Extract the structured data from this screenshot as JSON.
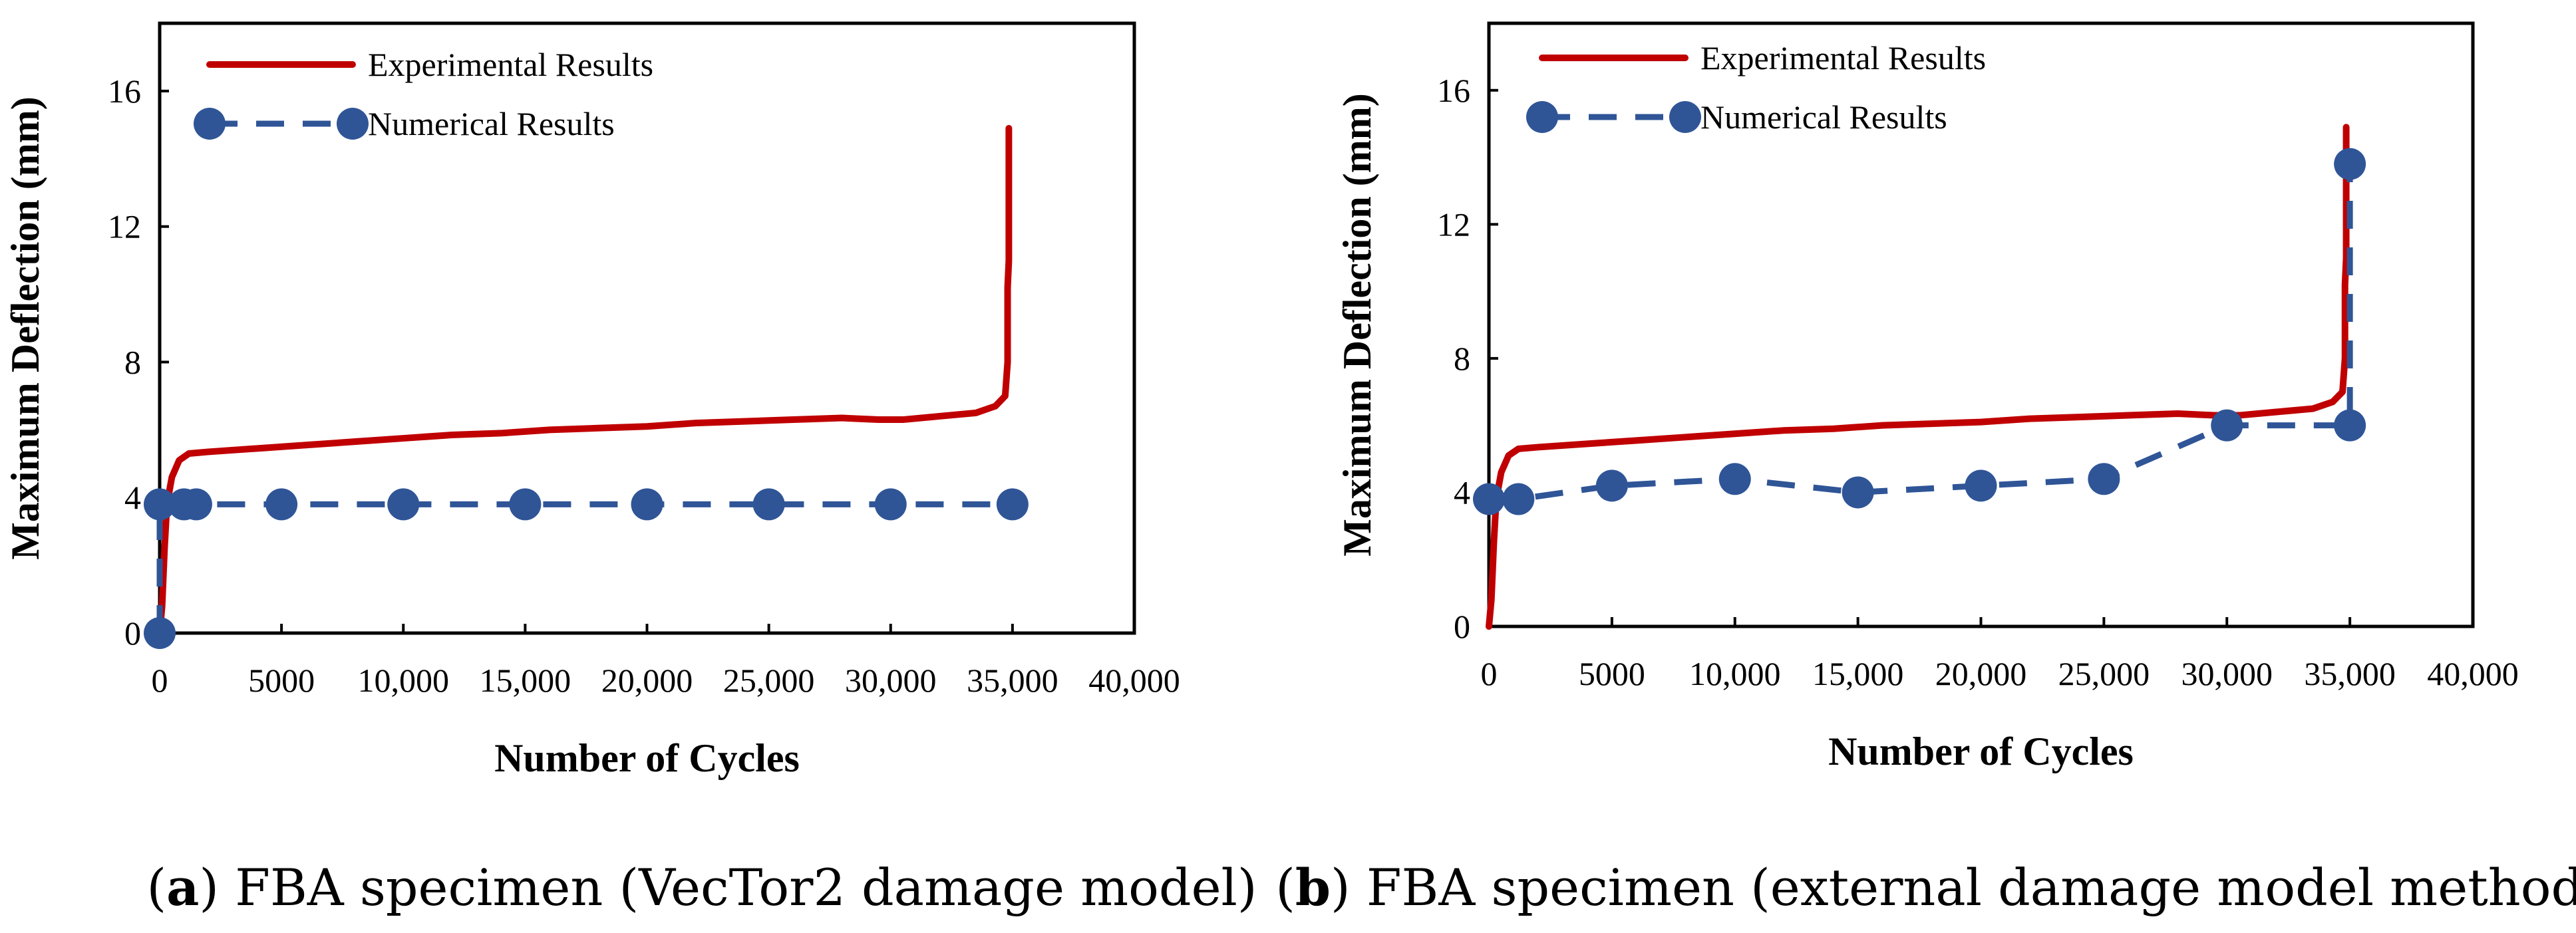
{
  "colors": {
    "experimental": "#C00000",
    "numerical": "#2F5597",
    "axis": "#000000"
  },
  "captions": [
    {
      "label": "a",
      "text": " FBA specimen (VecTor2 damage model)"
    },
    {
      "label": "b",
      "text": " FBA specimen (external damage model method)"
    }
  ],
  "chart_data": [
    {
      "type": "line",
      "xlabel": "Number of Cycles",
      "ylabel": "Maximum Deflection (mm)",
      "xlim": [
        0,
        40000
      ],
      "ylim": [
        0,
        18
      ],
      "x_ticks": [
        0,
        5000,
        10000,
        15000,
        20000,
        25000,
        30000,
        35000,
        40000
      ],
      "x_tick_labels": [
        "0",
        "5000",
        "10,000",
        "15,000",
        "20,000",
        "25,000",
        "30,000",
        "35,000",
        "40,000"
      ],
      "y_ticks": [
        0,
        4,
        8,
        12,
        16
      ],
      "y_tick_labels": [
        "0",
        "4",
        "8",
        "12",
        "16"
      ],
      "legend": {
        "position": "top-left",
        "entries": [
          "Experimental Results",
          "Numerical Results"
        ]
      },
      "series": [
        {
          "name": "Experimental Results",
          "style": "solid",
          "x": [
            0,
            100,
            200,
            300,
            500,
            800,
            1200,
            2000,
            4000,
            6000,
            8000,
            10000,
            12000,
            14000,
            16000,
            18000,
            20000,
            22000,
            24000,
            26000,
            28000,
            29500,
            30500,
            32000,
            33500,
            34300,
            34700,
            34800,
            34800,
            34850,
            34850
          ],
          "y": [
            0,
            0.8,
            2.5,
            3.8,
            4.6,
            5.1,
            5.3,
            5.35,
            5.45,
            5.55,
            5.65,
            5.75,
            5.85,
            5.9,
            6.0,
            6.05,
            6.1,
            6.2,
            6.25,
            6.3,
            6.35,
            6.3,
            6.3,
            6.4,
            6.5,
            6.7,
            7.0,
            8.0,
            10.2,
            11.0,
            14.9
          ]
        },
        {
          "name": "Numerical Results",
          "style": "dashed",
          "marker": "circle",
          "x": [
            0,
            0,
            1000,
            1500,
            5000,
            10000,
            15000,
            20000,
            25000,
            30000,
            35000
          ],
          "y": [
            0,
            3.8,
            3.8,
            3.8,
            3.8,
            3.8,
            3.8,
            3.8,
            3.8,
            3.8,
            3.8
          ]
        }
      ]
    },
    {
      "type": "line",
      "xlabel": "Number of Cycles",
      "ylabel": "Maximum Deflection (mm)",
      "xlim": [
        0,
        40000
      ],
      "ylim": [
        0,
        18
      ],
      "x_ticks": [
        0,
        5000,
        10000,
        15000,
        20000,
        25000,
        30000,
        35000,
        40000
      ],
      "x_tick_labels": [
        "0",
        "5000",
        "10,000",
        "15,000",
        "20,000",
        "25,000",
        "30,000",
        "35,000",
        "40,000"
      ],
      "y_ticks": [
        0,
        4,
        8,
        12,
        16
      ],
      "y_tick_labels": [
        "0",
        "4",
        "8",
        "12",
        "16"
      ],
      "legend": {
        "position": "top-left",
        "entries": [
          "Experimental Results",
          "Numerical Results"
        ]
      },
      "series": [
        {
          "name": "Experimental Results",
          "style": "solid",
          "x": [
            0,
            100,
            200,
            300,
            500,
            800,
            1200,
            2000,
            4000,
            6000,
            8000,
            10000,
            12000,
            14000,
            16000,
            18000,
            20000,
            22000,
            24000,
            26000,
            28000,
            29500,
            30500,
            32000,
            33500,
            34300,
            34700,
            34800,
            34800,
            34850,
            34850
          ],
          "y": [
            0,
            0.8,
            2.5,
            3.8,
            4.6,
            5.1,
            5.3,
            5.35,
            5.45,
            5.55,
            5.65,
            5.75,
            5.85,
            5.9,
            6.0,
            6.05,
            6.1,
            6.2,
            6.25,
            6.3,
            6.35,
            6.3,
            6.3,
            6.4,
            6.5,
            6.7,
            7.0,
            8.0,
            10.2,
            11.0,
            14.9
          ]
        },
        {
          "name": "Numerical Results",
          "style": "dashed",
          "marker": "circle",
          "x": [
            0,
            1200,
            5000,
            10000,
            15000,
            20000,
            25000,
            30000,
            35000,
            35000
          ],
          "y": [
            3.8,
            3.8,
            4.2,
            4.4,
            4.0,
            4.2,
            4.4,
            6.0,
            6.0,
            13.8
          ]
        }
      ]
    }
  ]
}
